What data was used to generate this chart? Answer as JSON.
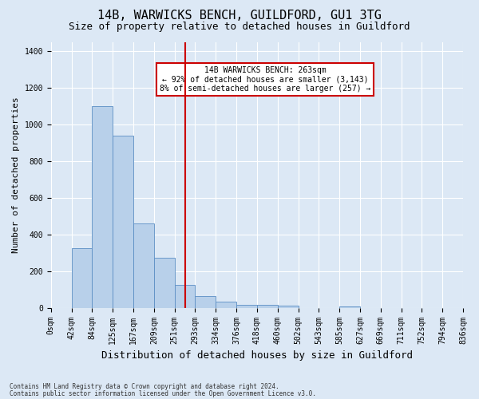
{
  "title": "14B, WARWICKS BENCH, GUILDFORD, GU1 3TG",
  "subtitle": "Size of property relative to detached houses in Guildford",
  "xlabel": "Distribution of detached houses by size in Guildford",
  "ylabel": "Number of detached properties",
  "footnote1": "Contains HM Land Registry data © Crown copyright and database right 2024.",
  "footnote2": "Contains public sector information licensed under the Open Government Licence v3.0.",
  "bar_values": [
    0,
    325,
    1100,
    940,
    460,
    275,
    125,
    65,
    35,
    20,
    20,
    15,
    0,
    0,
    10,
    0,
    0,
    0,
    0,
    0
  ],
  "bin_labels": [
    "0sqm",
    "42sqm",
    "84sqm",
    "125sqm",
    "167sqm",
    "209sqm",
    "251sqm",
    "293sqm",
    "334sqm",
    "376sqm",
    "418sqm",
    "460sqm",
    "502sqm",
    "543sqm",
    "585sqm",
    "627sqm",
    "669sqm",
    "711sqm",
    "752sqm",
    "794sqm",
    "836sqm"
  ],
  "bar_color": "#b8d0ea",
  "bar_edge_color": "#5b8ec4",
  "vline_color": "#cc0000",
  "vline_bin": 6.5,
  "annotation_text": "14B WARWICKS BENCH: 263sqm\n← 92% of detached houses are smaller (3,143)\n8% of semi-detached houses are larger (257) →",
  "annotation_box_color": "#cc0000",
  "annotation_fill": "#ffffff",
  "ylim": [
    0,
    1450
  ],
  "yticks": [
    0,
    200,
    400,
    600,
    800,
    1000,
    1200,
    1400
  ],
  "bg_color": "#dce8f5",
  "plot_bg_color": "#dce8f5",
  "grid_color": "#ffffff",
  "title_fontsize": 11,
  "subtitle_fontsize": 9,
  "ylabel_fontsize": 8,
  "xlabel_fontsize": 9,
  "tick_fontsize": 7,
  "ann_fontsize": 7,
  "footnote_fontsize": 5.5
}
